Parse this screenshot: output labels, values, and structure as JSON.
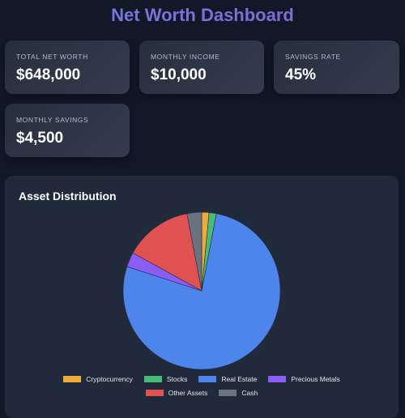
{
  "header": {
    "title": "Net Worth Dashboard"
  },
  "cards": [
    {
      "label": "Total Net Worth",
      "value": "$648,000"
    },
    {
      "label": "Monthly Income",
      "value": "$10,000"
    },
    {
      "label": "Savings Rate",
      "value": "45%"
    },
    {
      "label": "Monthly Savings",
      "value": "$4,500"
    }
  ],
  "chart_panel": {
    "title": "Asset Distribution"
  },
  "chart_data": {
    "type": "pie",
    "title": "Asset Distribution",
    "categories": [
      "Cryptocurrency",
      "Stocks",
      "Real Estate",
      "Precious Metals",
      "Other Assets",
      "Cash"
    ],
    "values": [
      1.5,
      1.5,
      77,
      3,
      14,
      3
    ],
    "colors": [
      "#f0a93b",
      "#48bb78",
      "#4d85ec",
      "#8b5cf6",
      "#e05252",
      "#6b7280"
    ],
    "legend_position": "bottom"
  }
}
